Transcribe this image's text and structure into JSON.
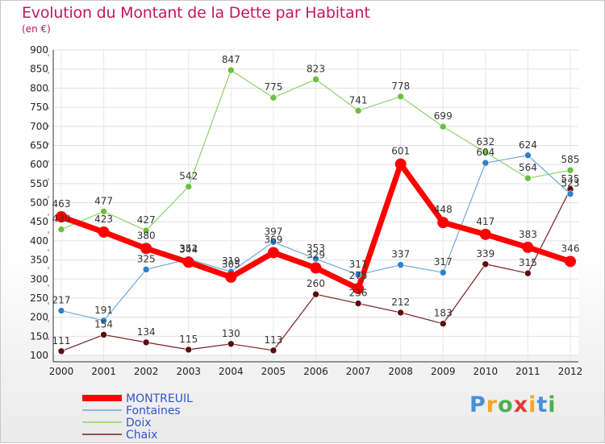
{
  "title": "Evolution du Montant de la Dette par Habitant",
  "unit": "(en €)",
  "logo": {
    "text": "Proxiti",
    "colors": [
      "#4a90d9",
      "#f5a623",
      "#4caf50",
      "#e53935",
      "#f5a623",
      "#4a90d9",
      "#4caf50"
    ]
  },
  "chart_data": {
    "type": "line",
    "x": [
      "2000",
      "2001",
      "2002",
      "2003",
      "2004",
      "2005",
      "2006",
      "2007",
      "2008",
      "2009",
      "2010",
      "2011",
      "2012"
    ],
    "ylim": [
      100,
      900
    ],
    "yticks": [
      100,
      150,
      200,
      250,
      300,
      350,
      400,
      450,
      500,
      550,
      600,
      650,
      700,
      750,
      800,
      850,
      900
    ],
    "grid": true,
    "legend_position": "bottom-left",
    "series": [
      {
        "name": "Chaix",
        "color": "#7b1f1f",
        "marker": "#5a0f0f",
        "width": 1.2,
        "radius": 4,
        "values": [
          111,
          154,
          134,
          115,
          130,
          113,
          260,
          236,
          212,
          183,
          339,
          315,
          535
        ]
      },
      {
        "name": "Doix",
        "color": "#8fd16a",
        "marker": "#6cbf3c",
        "width": 1.2,
        "radius": 4,
        "values": [
          430,
          477,
          427,
          542,
          847,
          775,
          823,
          741,
          778,
          699,
          632,
          564,
          585
        ]
      },
      {
        "name": "Fontaines",
        "color": "#6fa8dc",
        "marker": "#2f7fcf",
        "width": 1.2,
        "radius": 4,
        "values": [
          217,
          191,
          325,
          352,
          319,
          397,
          353,
          311,
          337,
          317,
          604,
          624,
          523
        ]
      },
      {
        "name": "MONTREUIL",
        "color": "#ff0000",
        "marker": "#ff0000",
        "width": 7,
        "radius": 7,
        "values": [
          463,
          423,
          380,
          344,
          305,
          369,
          329,
          275,
          601,
          448,
          417,
          383,
          346
        ]
      }
    ],
    "legend_order": [
      "MONTREUIL",
      "Fontaines",
      "Doix",
      "Chaix"
    ]
  }
}
